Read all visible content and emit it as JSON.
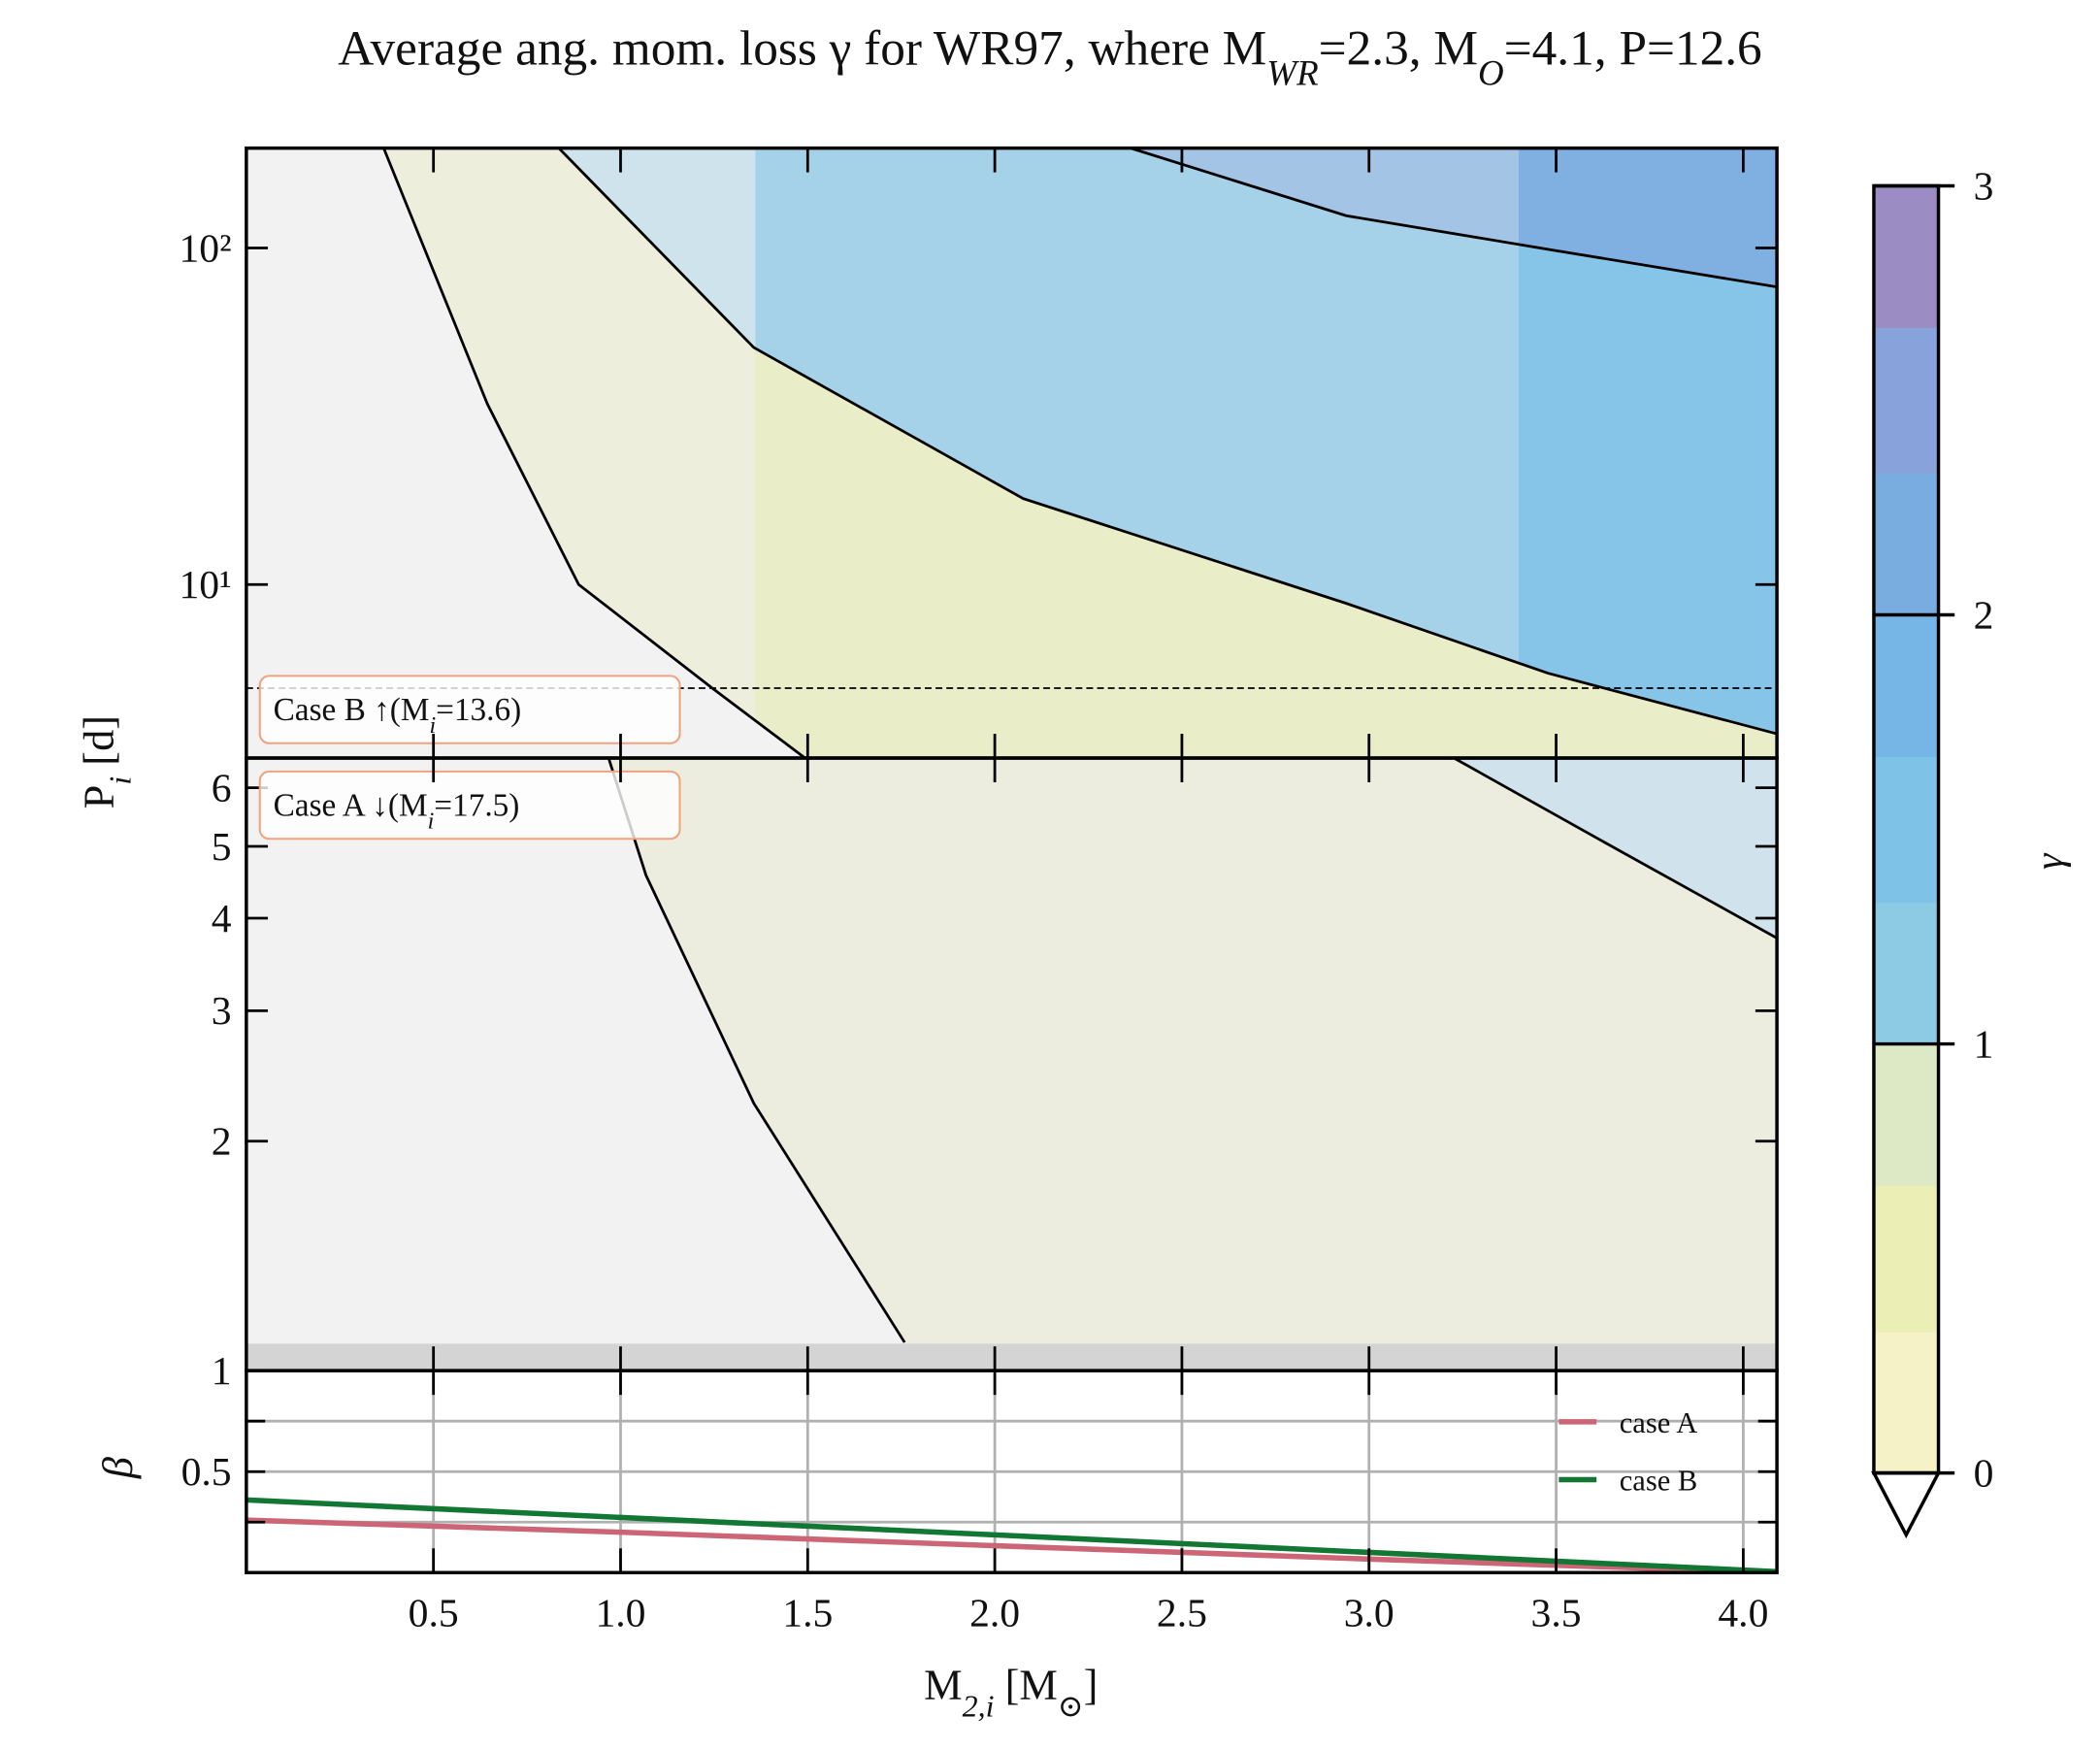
{
  "chart_data": {
    "type": "contour",
    "title": [
      "Average ang. mom. loss γ for WR97, where M",
      "WR",
      "=2.3, M",
      "O",
      "=4.1, P=12.6"
    ],
    "xlabel": [
      "M",
      "2,i",
      " [M",
      "⊙",
      "]"
    ],
    "ylabel": [
      "P",
      "i",
      " [d]"
    ],
    "xlim": [
      0,
      4.09
    ],
    "xticks": [
      0.5,
      {
        "value": 1,
        "label": "1.0"
      },
      1.5,
      {
        "value": 2,
        "label": "2.0"
      },
      2.5,
      {
        "value": 3,
        "label": "3.0"
      },
      3.5,
      {
        "value": 4,
        "label": "4.0"
      }
    ],
    "x_breaks": [
      1.36,
      3.4
    ],
    "case_b": {
      "ylim": [
        3.05,
        198
      ],
      "log": true,
      "yticks": [
        {
          "value": 10,
          "label": "10¹"
        },
        {
          "value": 100,
          "label": "10²"
        }
      ],
      "annotation": [
        "Case B ↑(M",
        "i",
        "=13.6)"
      ],
      "threshold": 4.92,
      "contours": [
        {
          "x": [
            0.367,
            0.644,
            0.888,
            1.245,
            1.493
          ],
          "y": [
            198,
            34.4,
            10,
            4.92,
            3.05
          ],
          "fill": "#edeedc",
          "band_fills": [
            "#e9eec9",
            "#e9eec9"
          ]
        },
        {
          "x": [
            0.835,
            1.356,
            2.076,
            2.939,
            3.478,
            4.09
          ],
          "y": [
            198,
            50.6,
            18.0,
            8.79,
            5.45,
            3.6
          ],
          "fill": "#cfe3ec",
          "band_fills": [
            "#a6d2e9",
            "#86c4e8"
          ]
        },
        {
          "x": [
            2.363,
            2.939,
            3.478,
            4.09
          ],
          "y": [
            198,
            124.7,
            99.1,
            76.6
          ],
          "fill": "#a4c4e6",
          "band_fills": [
            "#a4c4e6",
            "#80b0e1"
          ]
        }
      ]
    },
    "case_a": {
      "ylim": [
        0.98,
        6.58
      ],
      "log": true,
      "yticks": [
        2,
        3,
        4,
        5,
        6
      ],
      "annotation": [
        "Case A ↓(M",
        "i",
        "=17.5)"
      ],
      "contours": [
        {
          "x": [
            0.968,
            1.068,
            1.356,
            1.759
          ],
          "y": [
            6.58,
            4.57,
            2.25,
            1.07
          ],
          "fill": "#ecedde"
        },
        {
          "x": [
            3.227,
            3.658,
            4.09
          ],
          "y": [
            6.58,
            4.97,
            3.76
          ],
          "fill": "#d0e3ec"
        }
      ]
    },
    "beta": {
      "type": "line",
      "ylabel": "β",
      "ylim": [
        0,
        1
      ],
      "yticks": [
        0.5,
        1
      ],
      "minor_yticks": [
        0.25,
        0.75
      ],
      "grid": true,
      "legend": "upper right",
      "x": [
        0,
        1,
        2,
        3,
        4.09
      ],
      "series": [
        {
          "name": "case A",
          "color": "#cc6677",
          "values": [
            0.26,
            0.2,
            0.133,
            0.067,
            0.0
          ]
        },
        {
          "name": "case B",
          "color": "#117733",
          "values": [
            0.36,
            0.273,
            0.187,
            0.1,
            0.005
          ]
        }
      ]
    },
    "colorbar": {
      "label": "γ",
      "lim": [
        0,
        3
      ],
      "ticks": [
        0,
        1,
        2,
        3
      ],
      "levels": [
        0,
        0.33,
        0.67,
        1,
        1.33,
        1.67,
        2,
        2.33,
        2.67,
        3
      ],
      "colors": [
        "#f4f2c6",
        "#ebefb6",
        "#dce9c4",
        "#8ccbe3",
        "#7fc2e8",
        "#75b6e6",
        "#7aaddf",
        "#88a3dc",
        "#9b8cc4"
      ],
      "extend": "min"
    }
  }
}
